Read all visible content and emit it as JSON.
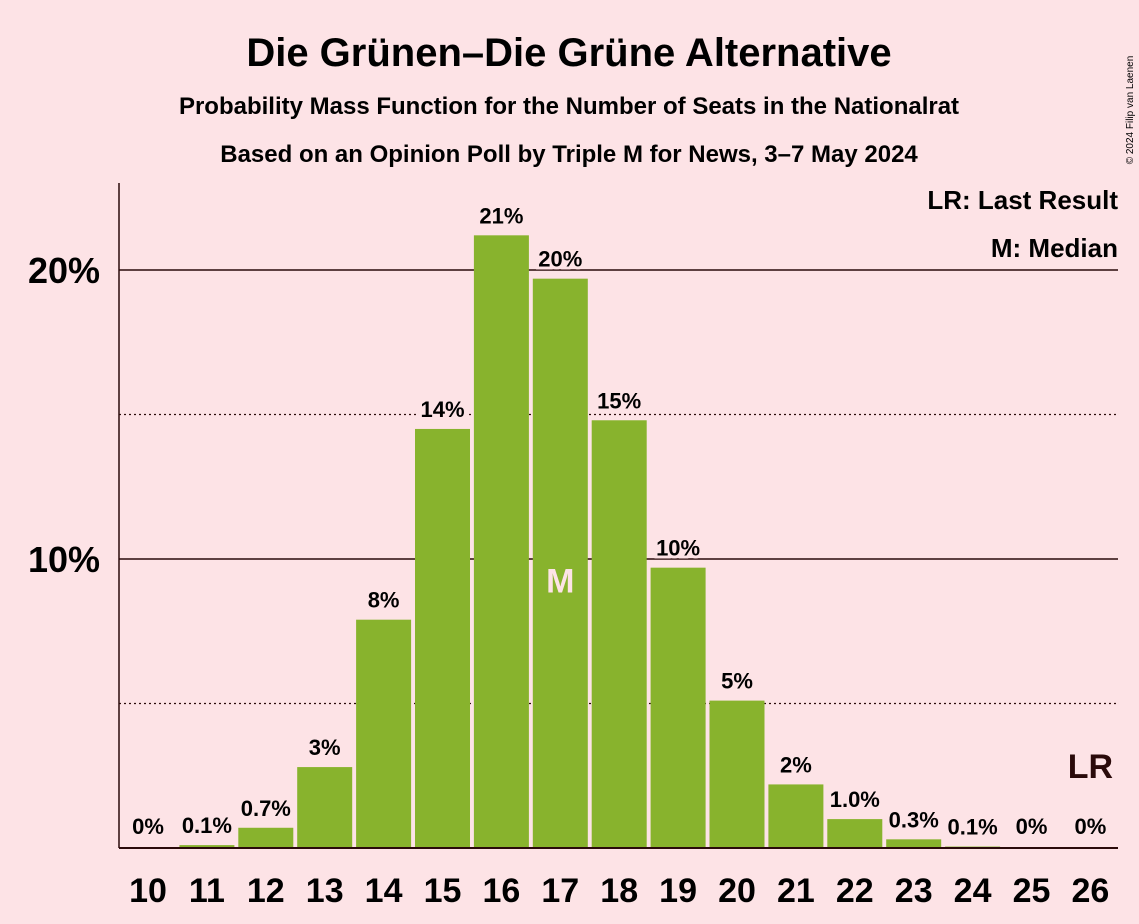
{
  "chart_data": {
    "type": "bar",
    "title": "Die Grünen–Die Grüne Alternative",
    "subtitle": "Probability Mass Function for the Number of Seats in the Nationalrat",
    "subtitle2": "Based on an Opinion Poll by Triple M for News, 3–7 May 2024",
    "credit": "© 2024 Filip van Laenen",
    "categories": [
      "10",
      "11",
      "12",
      "13",
      "14",
      "15",
      "16",
      "17",
      "18",
      "19",
      "20",
      "21",
      "22",
      "23",
      "24",
      "25",
      "26"
    ],
    "values": [
      0,
      0.1,
      0.7,
      2.8,
      7.9,
      14.5,
      21.2,
      19.7,
      14.8,
      9.7,
      5.1,
      2.2,
      1.0,
      0.3,
      0.05,
      0,
      0
    ],
    "labels": [
      "0%",
      "0.1%",
      "0.7%",
      "3%",
      "8%",
      "14%",
      "21%",
      "20%",
      "15%",
      "10%",
      "5%",
      "2%",
      "1.0%",
      "0.3%",
      "0.1%",
      "0%",
      "0%"
    ],
    "ylim": [
      0,
      23
    ],
    "yticks": [
      {
        "value": 10,
        "label": "10%"
      },
      {
        "value": 20,
        "label": "20%"
      }
    ],
    "minor_grid": [
      5,
      15
    ],
    "median_category": "17",
    "median_marker": "M",
    "last_result_category": "26",
    "last_result_marker": "LR",
    "legend": [
      "LR: Last Result",
      "M: Median"
    ],
    "legend_position": "top-right",
    "bar_color": "#88b32d"
  }
}
